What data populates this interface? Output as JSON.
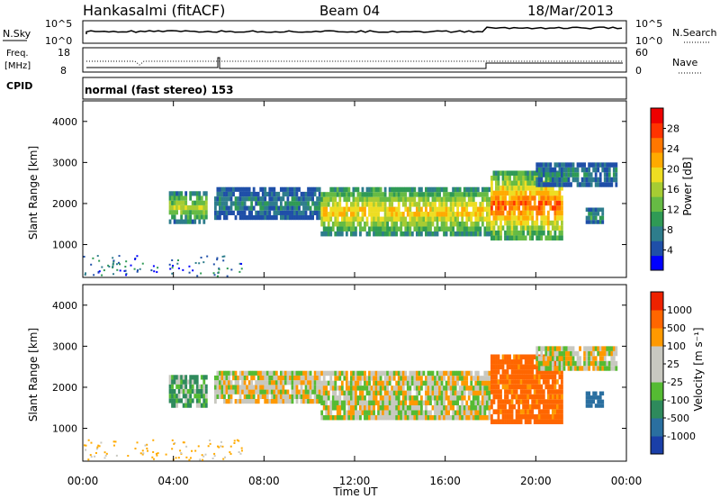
{
  "header": {
    "station": "Hankasalmi (fitACF)",
    "beam": "Beam 04",
    "date": "18/Mar/2013"
  },
  "top_panels": {
    "nsky_label": "N.Sky",
    "nsky_ticks": [
      "10^5",
      "10^0"
    ],
    "nsearch_label": "N.Search",
    "nsearch_ticks": [
      "10^5",
      "10^0"
    ],
    "freq_label_1": "Freq.",
    "freq_label_2": "[MHz]",
    "freq_ticks": [
      "18",
      "8"
    ],
    "nave_label": "Nave",
    "nave_ticks": [
      "60",
      "0"
    ],
    "cpid_label": "CPID",
    "cpid_text": "normal (fast stereo) 153"
  },
  "chart_data": [
    {
      "type": "heatmap",
      "name": "power",
      "ylabel": "Slant Range [km]",
      "xlabel": "Time UT",
      "ylim": [
        200,
        4500
      ],
      "yticks": [
        "1000",
        "2000",
        "3000",
        "4000"
      ],
      "x_ticks": [
        "00:00",
        "04:00",
        "08:00",
        "12:00",
        "16:00",
        "20:00",
        "00:00"
      ],
      "colorbar": {
        "label": "Power [dB]",
        "ticks": [
          "28",
          "24",
          "20",
          "16",
          "12",
          "8",
          "4"
        ],
        "colors": [
          "#0000ff",
          "#1f4fa8",
          "#2e7d8c",
          "#2f9a55",
          "#66bb44",
          "#a6cc33",
          "#eedd22",
          "#ffaa00",
          "#ff7700",
          "#ff3300",
          "#ee0000"
        ]
      },
      "echo_regions": [
        {
          "t_start": 3.8,
          "t_end": 5.5,
          "r_min": 1500,
          "r_max": 2300,
          "mean_power_db": 18
        },
        {
          "t_start": 5.8,
          "t_end": 10.5,
          "r_min": 1600,
          "r_max": 2400,
          "mean_power_db": 8
        },
        {
          "t_start": 10.5,
          "t_end": 18.0,
          "r_min": 1200,
          "r_max": 2400,
          "mean_power_db": 22
        },
        {
          "t_start": 18.0,
          "t_end": 21.2,
          "r_min": 1100,
          "r_max": 2800,
          "mean_power_db": 27
        },
        {
          "t_start": 20.0,
          "t_end": 23.6,
          "r_min": 2400,
          "r_max": 3000,
          "mean_power_db": 8
        },
        {
          "t_start": 22.2,
          "t_end": 23.0,
          "r_min": 1500,
          "r_max": 1900,
          "mean_power_db": 14
        }
      ]
    },
    {
      "type": "heatmap",
      "name": "velocity",
      "ylabel": "Slant Range [km]",
      "xlabel": "Time UT",
      "ylim": [
        200,
        4500
      ],
      "yticks": [
        "1000",
        "2000",
        "3000",
        "4000"
      ],
      "x_ticks": [
        "00:00",
        "04:00",
        "08:00",
        "12:00",
        "16:00",
        "20:00",
        "00:00"
      ],
      "colorbar": {
        "label": "Velocity [m s⁻¹]",
        "ticks": [
          "1000",
          "500",
          "100",
          "25",
          "-25",
          "-100",
          "-500",
          "-1000"
        ],
        "colors": [
          "#1a3fa8",
          "#2a6fa0",
          "#2e8a5c",
          "#55bb33",
          "#c8c8c0",
          "#c8c8c0",
          "#ff9900",
          "#ff6600",
          "#ee2200"
        ]
      },
      "echo_regions": [
        {
          "t_start": 3.8,
          "t_end": 5.5,
          "r_min": 1500,
          "r_max": 2300,
          "mean_velocity": 60
        },
        {
          "t_start": 5.8,
          "t_end": 10.5,
          "r_min": 1600,
          "r_max": 2400,
          "mean_velocity": 0
        },
        {
          "t_start": 10.5,
          "t_end": 18.0,
          "r_min": 1200,
          "r_max": 2400,
          "mean_velocity": 0
        },
        {
          "t_start": 18.0,
          "t_end": 21.2,
          "r_min": 1100,
          "r_max": 2800,
          "mean_velocity": -150
        },
        {
          "t_start": 20.0,
          "t_end": 23.6,
          "r_min": 2400,
          "r_max": 3000,
          "mean_velocity": 0
        },
        {
          "t_start": 22.2,
          "t_end": 23.0,
          "r_min": 1500,
          "r_max": 1900,
          "mean_velocity": 400
        }
      ]
    }
  ]
}
